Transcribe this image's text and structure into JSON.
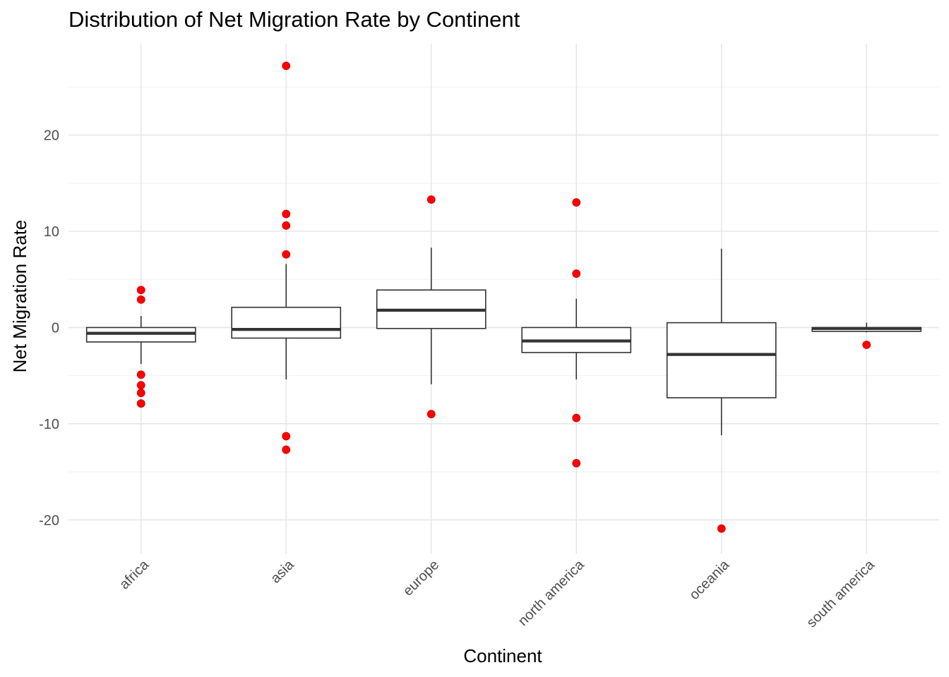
{
  "chart_data": {
    "type": "box",
    "title": "Distribution of Net Migration Rate by Continent",
    "xlabel": "Continent",
    "ylabel": "Net Migration Rate",
    "ylim": [
      -23.5,
      29.5
    ],
    "yticks": [
      -20,
      -10,
      0,
      10,
      20
    ],
    "grid": true,
    "outlier_color": "#ff0000",
    "box_color": "#333333",
    "categories": [
      "africa",
      "asia",
      "europe",
      "north america",
      "oceania",
      "south america"
    ],
    "boxes": [
      {
        "category": "africa",
        "whisker_low": -3.8,
        "q1": -1.5,
        "median": -0.6,
        "q3": 0.0,
        "whisker_high": 1.2,
        "outliers": [
          3.9,
          2.9,
          -4.9,
          -6.0,
          -6.8,
          -7.9
        ]
      },
      {
        "category": "asia",
        "whisker_low": -5.4,
        "q1": -1.1,
        "median": -0.2,
        "q3": 2.1,
        "whisker_high": 6.6,
        "outliers": [
          27.2,
          11.8,
          10.6,
          7.6,
          -11.3,
          -12.7
        ]
      },
      {
        "category": "europe",
        "whisker_low": -5.9,
        "q1": -0.1,
        "median": 1.8,
        "q3": 3.9,
        "whisker_high": 8.3,
        "outliers": [
          13.3,
          -9.0
        ]
      },
      {
        "category": "north america",
        "whisker_low": -5.4,
        "q1": -2.6,
        "median": -1.4,
        "q3": 0.0,
        "whisker_high": 3.0,
        "outliers": [
          13.0,
          5.6,
          -9.4,
          -14.1
        ]
      },
      {
        "category": "oceania",
        "whisker_low": -11.2,
        "q1": -7.3,
        "median": -2.8,
        "q3": 0.5,
        "whisker_high": 8.2,
        "outliers": [
          -20.9
        ]
      },
      {
        "category": "south america",
        "whisker_low": -0.5,
        "q1": -0.4,
        "median": -0.1,
        "q3": 0.0,
        "whisker_high": 0.5,
        "outliers": [
          -1.8
        ]
      }
    ]
  }
}
